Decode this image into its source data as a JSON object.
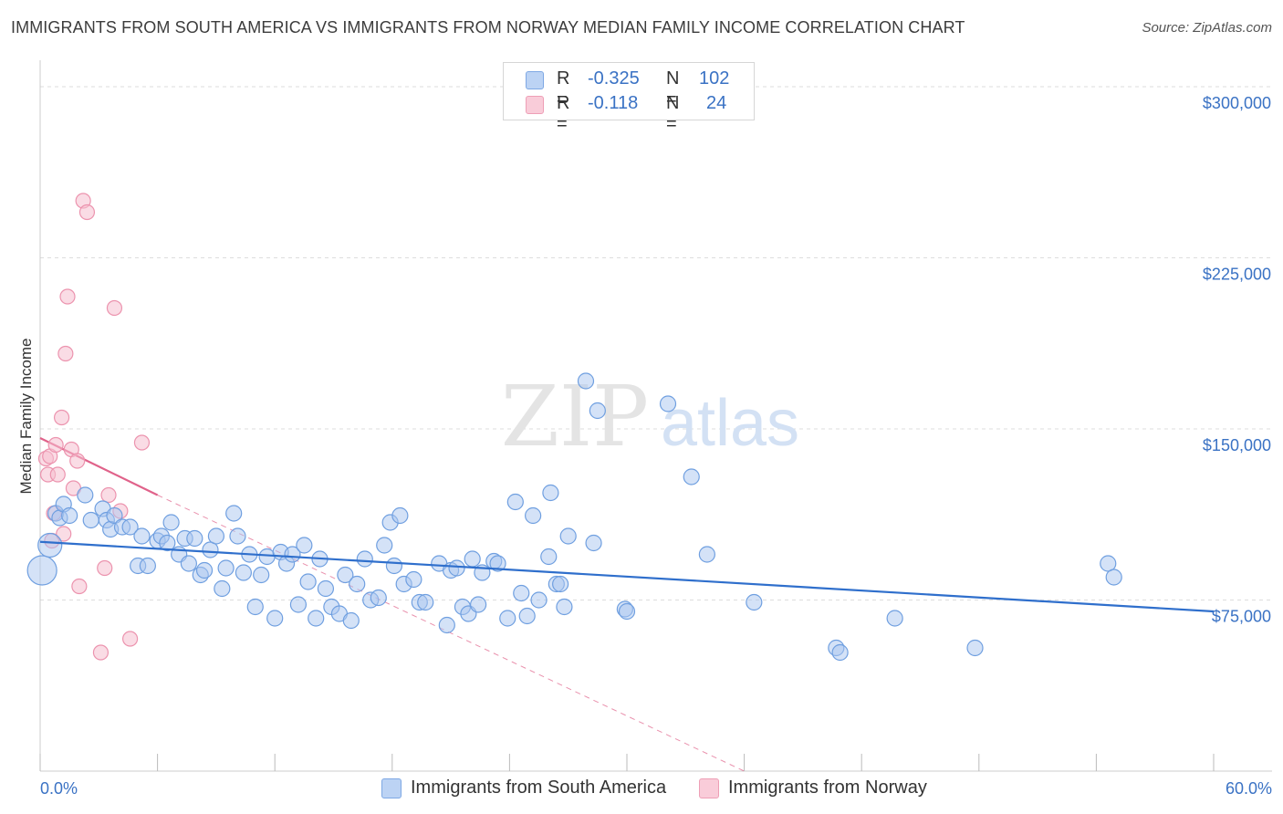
{
  "title": "IMMIGRANTS FROM SOUTH AMERICA VS IMMIGRANTS FROM NORWAY MEDIAN FAMILY INCOME CORRELATION CHART",
  "source": "Source: ZipAtlas.com",
  "watermark": {
    "zip": "ZIP",
    "atlas": "atlas"
  },
  "legend": {
    "rows": [
      {
        "r_label": "R =",
        "r_value": "-0.325",
        "n_label": "N =",
        "n_value": "102",
        "color": "#8fb4ea"
      },
      {
        "r_label": "R =",
        "r_value": "-0.118",
        "n_label": "N =",
        "n_value": "24",
        "color": "#f2a7bd"
      }
    ]
  },
  "bottom_legend": [
    {
      "label": "Immigrants from South America",
      "color": "#8fb4ea"
    },
    {
      "label": "Immigrants from Norway",
      "color": "#f2a7bd"
    }
  ],
  "colors": {
    "blue_fill": "#a9c6f0",
    "blue_stroke": "#6f9fe0",
    "blue_line": "#2f6fcc",
    "pink_fill": "#f6c0d0",
    "pink_stroke": "#ec93ae",
    "pink_line": "#e0628a",
    "axis_text": "#3a72c4",
    "grid": "#dddddd"
  },
  "chart_data": {
    "type": "scatter",
    "title": "IMMIGRANTS FROM SOUTH AMERICA VS IMMIGRANTS FROM NORWAY MEDIAN FAMILY INCOME CORRELATION CHART",
    "xlabel": "",
    "ylabel": "Median Family Income",
    "xlim": [
      0,
      60
    ],
    "ylim": [
      0,
      310000
    ],
    "x_tick_labels": [
      "0.0%",
      "60.0%"
    ],
    "y_ticks": [
      75000,
      150000,
      225000,
      300000
    ],
    "y_tick_labels": [
      "$75,000",
      "$150,000",
      "$225,000",
      "$300,000"
    ],
    "series": [
      {
        "name": "Immigrants from South America",
        "R": -0.325,
        "N": 102,
        "trend": {
          "x0": 0,
          "y0": 100500,
          "x1": 60,
          "y1": 70000
        },
        "points": [
          [
            0.1,
            88000
          ],
          [
            0.5,
            99000
          ],
          [
            0.8,
            113000
          ],
          [
            1.0,
            111000
          ],
          [
            1.2,
            117000
          ],
          [
            1.5,
            112000
          ],
          [
            2.3,
            121000
          ],
          [
            2.6,
            110000
          ],
          [
            3.2,
            115000
          ],
          [
            3.4,
            110000
          ],
          [
            3.6,
            106000
          ],
          [
            3.8,
            112000
          ],
          [
            4.2,
            107000
          ],
          [
            4.6,
            107000
          ],
          [
            5.0,
            90000
          ],
          [
            5.2,
            103000
          ],
          [
            5.5,
            90000
          ],
          [
            6.0,
            101000
          ],
          [
            6.2,
            103000
          ],
          [
            6.5,
            100000
          ],
          [
            6.7,
            109000
          ],
          [
            7.1,
            95000
          ],
          [
            7.4,
            102000
          ],
          [
            7.6,
            91000
          ],
          [
            7.9,
            102000
          ],
          [
            8.2,
            86000
          ],
          [
            8.4,
            88000
          ],
          [
            8.7,
            97000
          ],
          [
            9.0,
            103000
          ],
          [
            9.3,
            80000
          ],
          [
            9.5,
            89000
          ],
          [
            9.9,
            113000
          ],
          [
            10.1,
            103000
          ],
          [
            10.4,
            87000
          ],
          [
            10.7,
            95000
          ],
          [
            11.0,
            72000
          ],
          [
            11.3,
            86000
          ],
          [
            11.6,
            94000
          ],
          [
            12.0,
            67000
          ],
          [
            12.3,
            96000
          ],
          [
            12.6,
            91000
          ],
          [
            12.9,
            95000
          ],
          [
            13.2,
            73000
          ],
          [
            13.5,
            99000
          ],
          [
            13.7,
            83000
          ],
          [
            14.1,
            67000
          ],
          [
            14.3,
            93000
          ],
          [
            14.6,
            80000
          ],
          [
            14.9,
            72000
          ],
          [
            15.3,
            69000
          ],
          [
            15.6,
            86000
          ],
          [
            15.9,
            66000
          ],
          [
            16.2,
            82000
          ],
          [
            16.6,
            93000
          ],
          [
            16.9,
            75000
          ],
          [
            17.3,
            76000
          ],
          [
            17.6,
            99000
          ],
          [
            17.9,
            109000
          ],
          [
            18.1,
            90000
          ],
          [
            18.4,
            112000
          ],
          [
            18.6,
            82000
          ],
          [
            19.1,
            84000
          ],
          [
            19.4,
            74000
          ],
          [
            19.7,
            74000
          ],
          [
            20.4,
            91000
          ],
          [
            20.8,
            64000
          ],
          [
            21.0,
            88000
          ],
          [
            21.3,
            89000
          ],
          [
            21.6,
            72000
          ],
          [
            21.9,
            69000
          ],
          [
            22.1,
            93000
          ],
          [
            22.4,
            73000
          ],
          [
            22.6,
            87000
          ],
          [
            23.2,
            92000
          ],
          [
            23.4,
            91000
          ],
          [
            23.9,
            67000
          ],
          [
            24.3,
            118000
          ],
          [
            24.6,
            78000
          ],
          [
            24.9,
            68000
          ],
          [
            25.2,
            112000
          ],
          [
            25.5,
            75000
          ],
          [
            26.0,
            94000
          ],
          [
            26.1,
            122000
          ],
          [
            26.4,
            82000
          ],
          [
            26.6,
            82000
          ],
          [
            26.8,
            72000
          ],
          [
            27.0,
            103000
          ],
          [
            28.3,
            100000
          ],
          [
            28.5,
            158000
          ],
          [
            29.9,
            71000
          ],
          [
            30.0,
            70000
          ],
          [
            32.1,
            161000
          ],
          [
            33.3,
            129000
          ],
          [
            34.1,
            95000
          ],
          [
            36.5,
            74000
          ],
          [
            40.7,
            54000
          ],
          [
            40.9,
            52000
          ],
          [
            43.7,
            67000
          ],
          [
            47.8,
            54000
          ],
          [
            54.6,
            91000
          ],
          [
            54.9,
            85000
          ],
          [
            27.9,
            171000
          ]
        ]
      },
      {
        "name": "Immigrants from Norway",
        "R": -0.118,
        "N": 24,
        "trend": {
          "x0": 0,
          "y0": 146000,
          "x1": 6.0,
          "y1": 121000
        },
        "trend_extended": {
          "x0": 6.0,
          "y0": 121000,
          "x1": 36.0,
          "y1": 0
        },
        "points": [
          [
            0.3,
            137000
          ],
          [
            0.4,
            130000
          ],
          [
            0.5,
            138000
          ],
          [
            0.6,
            101000
          ],
          [
            0.7,
            113000
          ],
          [
            0.8,
            143000
          ],
          [
            0.9,
            130000
          ],
          [
            1.1,
            155000
          ],
          [
            1.2,
            104000
          ],
          [
            1.3,
            183000
          ],
          [
            1.4,
            208000
          ],
          [
            1.6,
            141000
          ],
          [
            1.7,
            124000
          ],
          [
            1.9,
            136000
          ],
          [
            2.0,
            81000
          ],
          [
            2.2,
            250000
          ],
          [
            2.4,
            245000
          ],
          [
            3.1,
            52000
          ],
          [
            3.3,
            89000
          ],
          [
            3.5,
            121000
          ],
          [
            3.8,
            203000
          ],
          [
            4.1,
            114000
          ],
          [
            4.6,
            58000
          ],
          [
            5.2,
            144000
          ]
        ]
      }
    ]
  }
}
